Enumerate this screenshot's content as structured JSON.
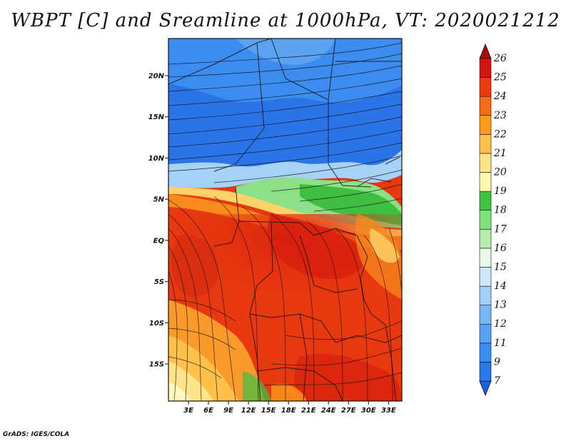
{
  "title": "WBPT [C] and Sreamline at 1000hPa, VT: 2020021212",
  "credit": "GrADS: IGES/COLA",
  "map": {
    "lon_labels": [
      "3E",
      "6E",
      "9E",
      "12E",
      "15E",
      "18E",
      "21E",
      "24E",
      "27E",
      "30E",
      "33E"
    ],
    "lon_values": [
      3,
      6,
      9,
      12,
      15,
      18,
      21,
      24,
      27,
      30,
      33
    ],
    "lon_range": [
      0,
      35
    ],
    "lat_labels": [
      "20N",
      "15N",
      "10N",
      "5N",
      "EQ",
      "5S",
      "10S",
      "15S"
    ],
    "lat_values": [
      20,
      15,
      10,
      5,
      0,
      -5,
      -10,
      -15
    ],
    "lat_range": [
      -19.5,
      24.5
    ]
  },
  "colorbar": {
    "levels": [
      "7",
      "9",
      "11",
      "12",
      "13",
      "14",
      "15",
      "16",
      "17",
      "18",
      "19",
      "20",
      "21",
      "22",
      "23",
      "24",
      "25",
      "26"
    ],
    "colors": [
      "#1a60e0",
      "#2a78ea",
      "#3a8ef0",
      "#56a3f2",
      "#78b8f5",
      "#a2d0f8",
      "#cde8fb",
      "#e8fae8",
      "#b4eeae",
      "#7de27a",
      "#3ec43e",
      "#fffab0",
      "#ffe488",
      "#ffc24a",
      "#fd9a1c",
      "#f76a14",
      "#ea3c12",
      "#d01810",
      "#a80a0a"
    ]
  }
}
